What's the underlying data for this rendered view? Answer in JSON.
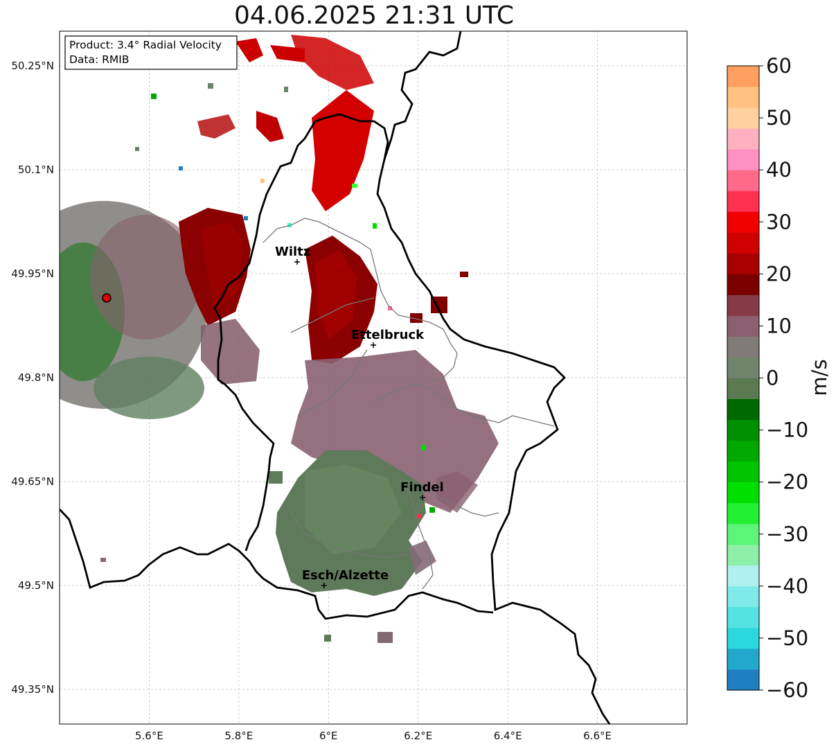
{
  "title": "04.06.2025 21:31 UTC",
  "info": {
    "product": "Product: 3.4° Radial Velocity",
    "data_source": "Data: RMIB"
  },
  "axes": {
    "x_ticks": [
      {
        "lon": 5.6,
        "label": "5.6°E"
      },
      {
        "lon": 5.8,
        "label": "5.8°E"
      },
      {
        "lon": 6.0,
        "label": "6°E"
      },
      {
        "lon": 6.2,
        "label": "6.2°E"
      },
      {
        "lon": 6.4,
        "label": "6.4°E"
      },
      {
        "lon": 6.6,
        "label": "6.6°E"
      }
    ],
    "y_ticks": [
      {
        "lat": 50.25,
        "label": "50.25°N"
      },
      {
        "lat": 50.1,
        "label": "50.1°N"
      },
      {
        "lat": 49.95,
        "label": "49.95°N"
      },
      {
        "lat": 49.8,
        "label": "49.8°N"
      },
      {
        "lat": 49.65,
        "label": "49.65°N"
      },
      {
        "lat": 49.5,
        "label": "49.5°N"
      },
      {
        "lat": 49.35,
        "label": "49.35°N"
      }
    ],
    "extent": {
      "lon_min": 5.4,
      "lon_max": 6.8,
      "lat_min": 49.3,
      "lat_max": 50.3
    }
  },
  "colorbar": {
    "unit": "m/s",
    "min": -60,
    "max": 60,
    "ticks": [
      {
        "v": 60,
        "label": "60"
      },
      {
        "v": 50,
        "label": "50"
      },
      {
        "v": 40,
        "label": "40"
      },
      {
        "v": 30,
        "label": "30"
      },
      {
        "v": 20,
        "label": "20"
      },
      {
        "v": 10,
        "label": "10"
      },
      {
        "v": 0,
        "label": "0"
      },
      {
        "v": -10,
        "label": "−10"
      },
      {
        "v": -20,
        "label": "−20"
      },
      {
        "v": -30,
        "label": "−30"
      },
      {
        "v": -40,
        "label": "−40"
      },
      {
        "v": -50,
        "label": "−50"
      },
      {
        "v": -60,
        "label": "−60"
      }
    ],
    "colors": [
      "#1f7fc0",
      "#22a8cc",
      "#2ad8dd",
      "#55e2e2",
      "#80eaea",
      "#b0f0f0",
      "#8ef0a8",
      "#5cf578",
      "#22f032",
      "#00e000",
      "#00c400",
      "#00a800",
      "#008f00",
      "#006a00",
      "#5a7a50",
      "#6f846a",
      "#807a78",
      "#8a6070",
      "#853a45",
      "#7a0000",
      "#a80000",
      "#d00000",
      "#f00000",
      "#ff3050",
      "#ff6a8a",
      "#ff90c0",
      "#ffb0c0",
      "#ffd0a0",
      "#ffc080",
      "#ffa060"
    ]
  },
  "cities": [
    {
      "name": "Wiltz",
      "lon": 5.93,
      "lat": 49.967
    },
    {
      "name": "Ettelbruck",
      "lon": 6.1,
      "lat": 49.847
    },
    {
      "name": "Findel",
      "lon": 6.21,
      "lat": 49.627
    },
    {
      "name": "Esch/Alzette",
      "lon": 5.99,
      "lat": 49.5
    }
  ],
  "radar_site": {
    "lon": 5.505,
    "lat": 49.915,
    "color": "#e00000"
  }
}
